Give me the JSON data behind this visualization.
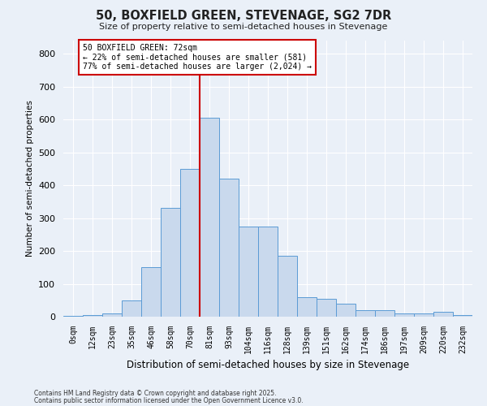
{
  "title": "50, BOXFIELD GREEN, STEVENAGE, SG2 7DR",
  "subtitle": "Size of property relative to semi-detached houses in Stevenage",
  "xlabel": "Distribution of semi-detached houses by size in Stevenage",
  "ylabel": "Number of semi-detached properties",
  "categories": [
    "0sqm",
    "12sqm",
    "23sqm",
    "35sqm",
    "46sqm",
    "58sqm",
    "70sqm",
    "81sqm",
    "93sqm",
    "104sqm",
    "116sqm",
    "128sqm",
    "139sqm",
    "151sqm",
    "162sqm",
    "174sqm",
    "186sqm",
    "197sqm",
    "209sqm",
    "220sqm",
    "232sqm"
  ],
  "values": [
    2,
    5,
    10,
    50,
    150,
    330,
    450,
    605,
    420,
    275,
    275,
    185,
    60,
    55,
    40,
    20,
    20,
    10,
    10,
    15,
    5
  ],
  "bar_color": "#c9d9ed",
  "bar_edge_color": "#5b9bd5",
  "background_color": "#eaf0f8",
  "grid_color": "#ffffff",
  "property_label": "50 BOXFIELD GREEN: 72sqm",
  "pct_smaller": 22,
  "pct_larger": 77,
  "n_smaller": 581,
  "n_larger": 2024,
  "annotation_box_color": "#ffffff",
  "annotation_box_edge_color": "#cc0000",
  "vline_color": "#cc0000",
  "ylim": [
    0,
    840
  ],
  "yticks": [
    0,
    100,
    200,
    300,
    400,
    500,
    600,
    700,
    800
  ],
  "footer1": "Contains HM Land Registry data © Crown copyright and database right 2025.",
  "footer2": "Contains public sector information licensed under the Open Government Licence v3.0."
}
